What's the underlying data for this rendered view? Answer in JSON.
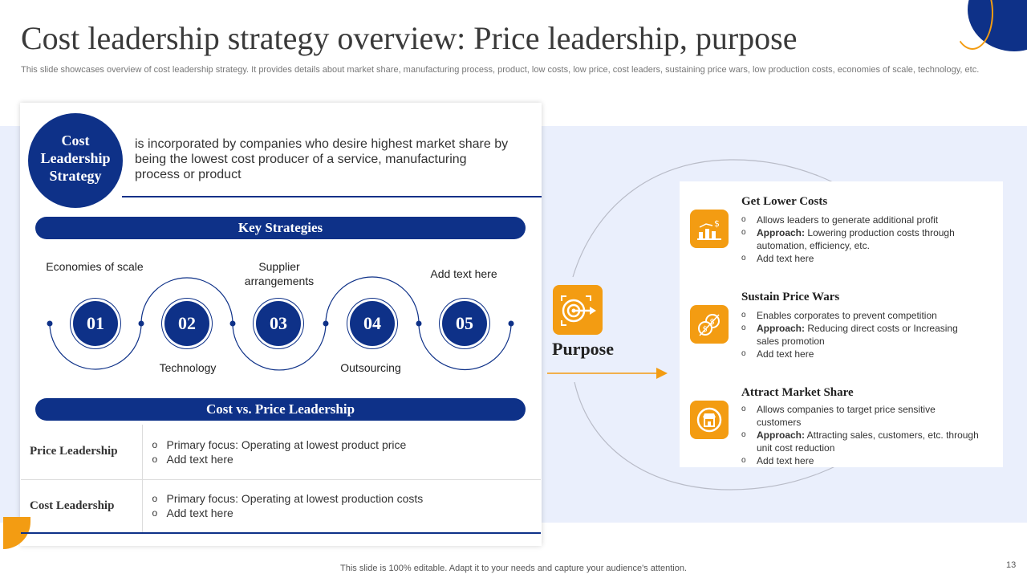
{
  "title": "Cost leadership strategy overview: Price leadership, purpose",
  "subtitle": "This slide showcases overview of cost leadership strategy. It provides details about market share, manufacturing process, product, low costs, low price, cost leaders, sustaining price wars, low production costs, economies of scale, technology, etc.",
  "cost_leadership": {
    "label_line1": "Cost",
    "label_line2": "Leadership",
    "label_line3": "Strategy",
    "description": "is incorporated by companies who desire highest market share by being the lowest cost producer of a service, manufacturing process or product"
  },
  "key_strategies": {
    "heading": "Key Strategies",
    "steps": [
      {
        "number": "01",
        "label": "Economies of scale"
      },
      {
        "number": "02",
        "label": "Technology"
      },
      {
        "number": "03",
        "label": "Supplier arrangements"
      },
      {
        "number": "04",
        "label": "Outsourcing"
      },
      {
        "number": "05",
        "label": "Add text here"
      }
    ]
  },
  "cost_vs_price": {
    "heading": "Cost vs. Price Leadership",
    "rows": [
      {
        "header": "Price  Leadership",
        "bullets": [
          "Primary focus: Operating at lowest product price",
          "Add text here"
        ]
      },
      {
        "header": "Cost Leadership",
        "bullets": [
          "Primary focus: Operating at lowest production costs",
          "Add text here"
        ]
      }
    ]
  },
  "purpose": {
    "label": "Purpose",
    "icon": "target-dart-icon",
    "items": [
      {
        "title": "Get Lower Costs",
        "icon": "dollar-chart-icon",
        "bullet1": "Allows leaders to generate additional profit",
        "approach_label": "Approach:",
        "approach_text": " Lowering production costs through automation, efficiency, etc.",
        "bullet3": "Add text here"
      },
      {
        "title": "Sustain Price Wars",
        "icon": "coins-icon",
        "bullet1": "Enables corporates to prevent  competition",
        "approach_label": "Approach:",
        "approach_text": " Reducing direct costs or Increasing sales promotion",
        "bullet3": "Add text here"
      },
      {
        "title": "Attract  Market Share",
        "icon": "store-icon",
        "bullet1": "Allows companies to target price sensitive customers",
        "approach_label": "Approach:",
        "approach_text": " Attracting sales, customers, etc. through unit cost reduction",
        "bullet3": "Add text here"
      }
    ]
  },
  "bullet_glyph": "o",
  "footer": "This slide is 100% editable. Adapt it to your needs and capture your audience's attention.",
  "page_number": "13",
  "colors": {
    "primary": "#0e3188",
    "accent": "#f39c12",
    "band": "#eaeffc"
  }
}
